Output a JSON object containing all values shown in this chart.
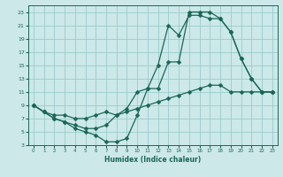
{
  "xlabel": "Humidex (Indice chaleur)",
  "bg_color": "#cce8e8",
  "grid_color": "#99cccc",
  "line_color": "#1a6655",
  "xlim": [
    -0.5,
    23.5
  ],
  "ylim": [
    3,
    24
  ],
  "xticks": [
    0,
    1,
    2,
    3,
    4,
    5,
    6,
    7,
    8,
    9,
    10,
    11,
    12,
    13,
    14,
    15,
    16,
    17,
    18,
    19,
    20,
    21,
    22,
    23
  ],
  "yticks": [
    3,
    5,
    7,
    9,
    11,
    13,
    15,
    17,
    19,
    21,
    23
  ],
  "curve1_x": [
    0,
    1,
    2,
    3,
    4,
    5,
    6,
    7,
    8,
    9,
    10,
    11,
    12,
    13,
    14,
    15,
    16,
    17,
    18,
    19,
    20,
    21,
    22,
    23
  ],
  "curve1_y": [
    9,
    8,
    7,
    6.5,
    5.5,
    5,
    4.5,
    3.5,
    3.5,
    4,
    7.5,
    11.5,
    11.5,
    15.5,
    15.5,
    23,
    23,
    23,
    22,
    20,
    16,
    13,
    11,
    11
  ],
  "curve2_x": [
    0,
    1,
    2,
    3,
    4,
    5,
    6,
    7,
    8,
    9,
    10,
    11,
    12,
    13,
    14,
    15,
    16,
    17,
    18,
    19,
    20,
    21,
    22,
    23
  ],
  "curve2_y": [
    9,
    8,
    7.5,
    7.5,
    7,
    7,
    7.5,
    8,
    7.5,
    8,
    8.5,
    9,
    9.5,
    10,
    10.5,
    11,
    11.5,
    12,
    12,
    11,
    11,
    11,
    11,
    11
  ],
  "curve3_x": [
    0,
    1,
    2,
    3,
    4,
    5,
    6,
    7,
    8,
    9,
    10,
    11,
    12,
    13,
    14,
    15,
    16,
    17,
    18,
    19,
    20,
    21,
    22,
    23
  ],
  "curve3_y": [
    9,
    8,
    7,
    6.5,
    6,
    5.5,
    5.5,
    6,
    7.5,
    8.5,
    11,
    11.5,
    15,
    21,
    19.5,
    22.5,
    22.5,
    22,
    22,
    20,
    16,
    13,
    11,
    11
  ]
}
